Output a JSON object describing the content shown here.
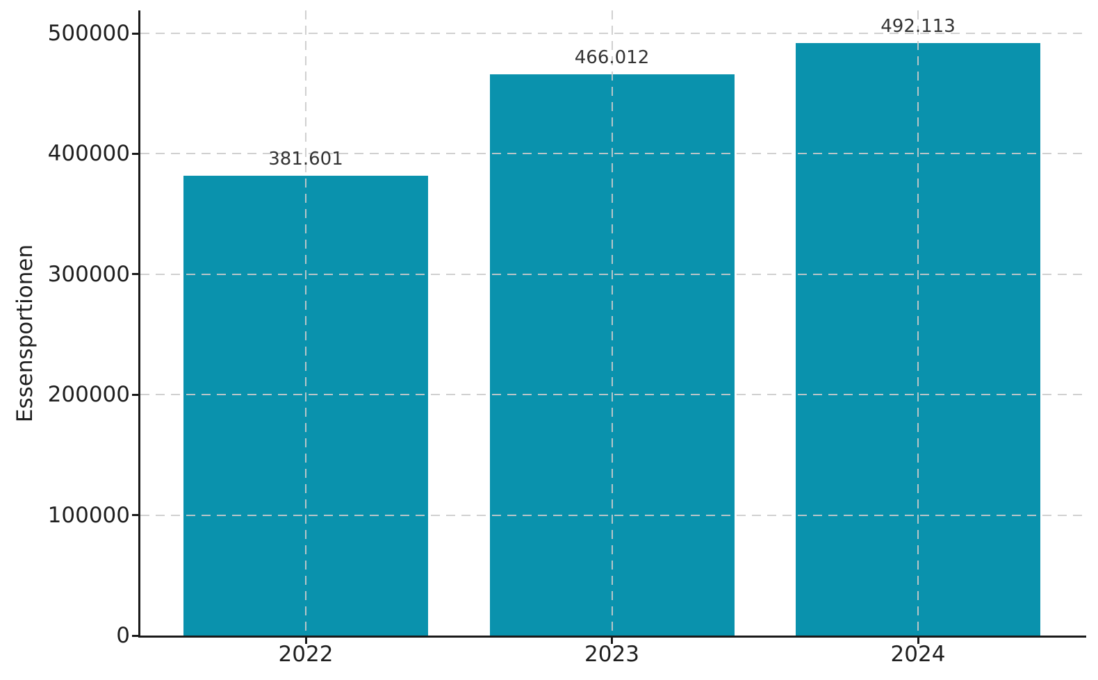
{
  "chart_data": {
    "type": "bar",
    "title": "",
    "categories": [
      "2022",
      "2023",
      "2024"
    ],
    "values": [
      381601,
      466012,
      492113
    ],
    "value_labels": [
      "381.601",
      "466.012",
      "492.113"
    ],
    "xlabel": "",
    "ylabel": "Essensportionen",
    "y_ticks": [
      0,
      100000,
      200000,
      300000,
      400000,
      500000
    ],
    "y_tick_labels": [
      "0",
      "100000",
      "200000",
      "300000",
      "400000",
      "500000"
    ],
    "ylim": [
      0,
      519000
    ],
    "grid": "both-dashed",
    "legend": "none",
    "colors": {
      "bar": "#0a92ad",
      "grid": "#cbcbcb",
      "axis": "#1a1a1a",
      "tick_text": "#1f1f1f",
      "annotation_text": "#333333",
      "background": "#ffffff"
    }
  }
}
